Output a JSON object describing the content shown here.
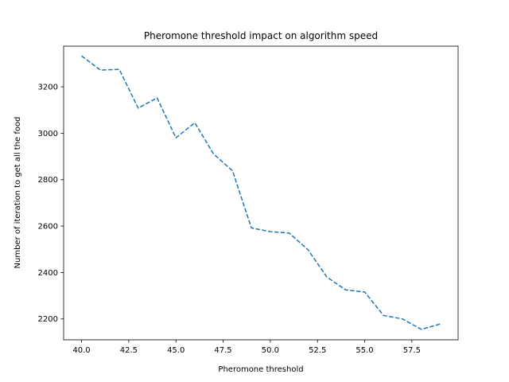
{
  "chart_data": {
    "type": "line",
    "title": "Pheromone threshold impact on algorithm speed",
    "xlabel": "Pheromone threshold",
    "ylabel": "Number of iteration to get all the food",
    "xlim": [
      39.05,
      59.95
    ],
    "ylim": [
      2110,
      3375
    ],
    "xticks": [
      40.0,
      42.5,
      45.0,
      47.5,
      50.0,
      52.5,
      55.0,
      57.5
    ],
    "xtick_labels": [
      "40.0",
      "42.5",
      "45.0",
      "47.5",
      "50.0",
      "52.5",
      "55.0",
      "57.5"
    ],
    "yticks": [
      2200,
      2400,
      2600,
      2800,
      3000,
      3200
    ],
    "ytick_labels": [
      "2200",
      "2400",
      "2600",
      "2800",
      "3000",
      "3200"
    ],
    "grid": false,
    "line_color": "#1f77b4",
    "line_style": "dashed",
    "series": [
      {
        "x": [
          40,
          41,
          42,
          43,
          44,
          45,
          46,
          47,
          48,
          49,
          50,
          51,
          52,
          53,
          54,
          55,
          56,
          57,
          58,
          59
        ],
        "y": [
          3333,
          3272,
          3275,
          3108,
          3152,
          2980,
          3045,
          2910,
          2838,
          2592,
          2576,
          2570,
          2498,
          2380,
          2325,
          2316,
          2215,
          2200,
          2155,
          2178
        ]
      }
    ]
  }
}
